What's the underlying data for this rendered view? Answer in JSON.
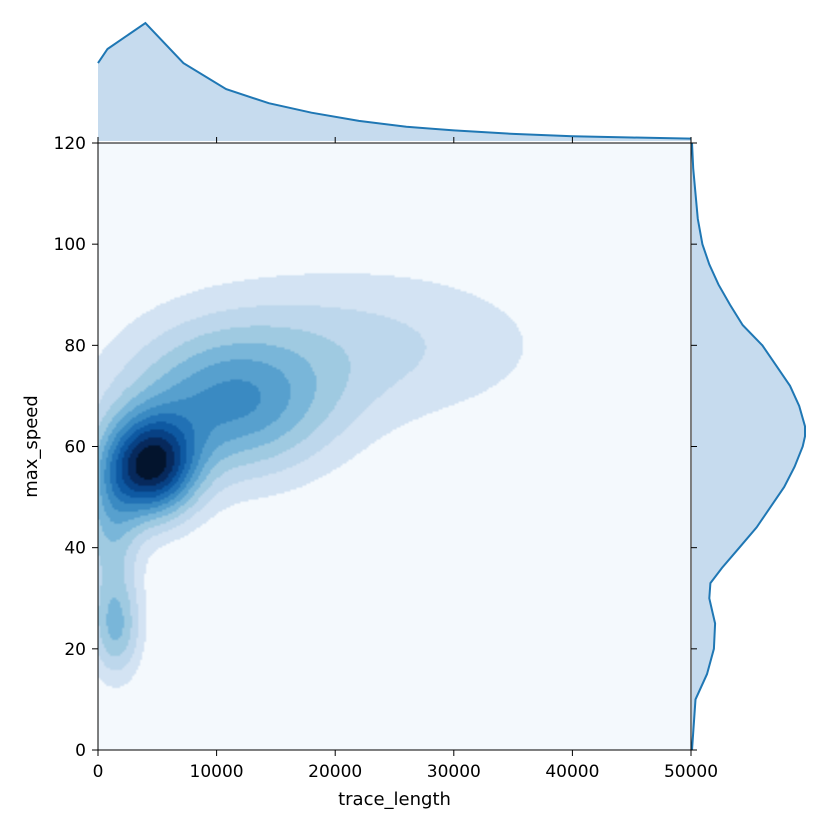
{
  "chart_data": {
    "type": "jointplot-kde",
    "title": "",
    "xlabel": "trace_length",
    "ylabel": "max_speed",
    "xlim": [
      0,
      50000
    ],
    "ylim": [
      0,
      120
    ],
    "xticks": [
      0,
      10000,
      20000,
      30000,
      40000,
      50000
    ],
    "yticks": [
      0,
      20,
      40,
      60,
      80,
      100,
      120
    ],
    "grid": false,
    "colormap": "Blues",
    "colors": {
      "background": "#f4f9fd",
      "marginal_line": "#1f77b4",
      "marginal_fill": "#c6dbee"
    },
    "joint_kde": {
      "levels": 12,
      "components": [
        {
          "x": 4500,
          "y": 56,
          "sx": 2600,
          "sy": 7,
          "w": 1.0
        },
        {
          "x": 11000,
          "y": 68,
          "sx": 6000,
          "sy": 10,
          "w": 0.55
        },
        {
          "x": 22000,
          "y": 80,
          "sx": 11000,
          "sy": 11,
          "w": 0.22
        },
        {
          "x": 1500,
          "y": 24,
          "sx": 1500,
          "sy": 7,
          "w": 0.38
        },
        {
          "x": 1000,
          "y": 45,
          "sx": 1800,
          "sy": 11,
          "w": 0.35
        }
      ]
    },
    "marginal_x": {
      "x": [
        0,
        800,
        4000,
        7200,
        10800,
        14400,
        18000,
        22000,
        26000,
        30000,
        35000,
        40000,
        45000,
        50000
      ],
      "density": [
        0.66,
        0.78,
        1.0,
        0.66,
        0.44,
        0.32,
        0.24,
        0.17,
        0.12,
        0.09,
        0.06,
        0.04,
        0.03,
        0.02
      ]
    },
    "marginal_y": {
      "y": [
        0,
        10,
        15,
        20,
        25,
        28,
        30,
        33,
        36,
        40,
        44,
        48,
        52,
        56,
        60,
        62,
        64,
        68,
        72,
        76,
        80,
        84,
        88,
        92,
        96,
        100,
        105,
        110,
        115,
        120
      ],
      "density": [
        0.0,
        0.03,
        0.13,
        0.19,
        0.2,
        0.17,
        0.15,
        0.16,
        0.26,
        0.41,
        0.56,
        0.68,
        0.8,
        0.89,
        0.96,
        0.98,
        0.98,
        0.93,
        0.85,
        0.73,
        0.61,
        0.44,
        0.33,
        0.23,
        0.15,
        0.09,
        0.05,
        0.03,
        0.01,
        0.0
      ]
    }
  }
}
